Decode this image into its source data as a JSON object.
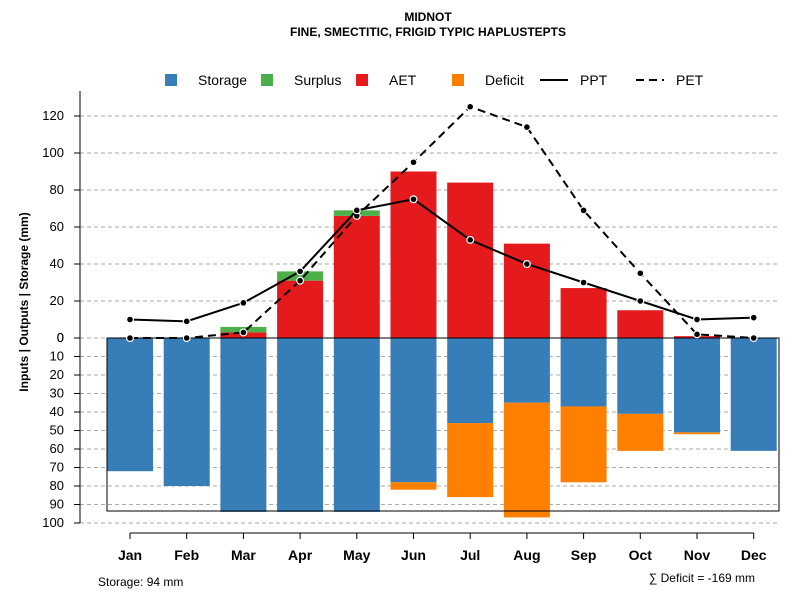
{
  "chart_data": {
    "type": "bar",
    "title": "MIDNOT",
    "subtitle": "FINE, SMECTITIC, FRIGID TYPIC HAPLUSTEPTS",
    "ylabel": "Inputs | Outputs | Storage    (mm)",
    "categories": [
      "Jan",
      "Feb",
      "Mar",
      "Apr",
      "May",
      "Jun",
      "Jul",
      "Aug",
      "Sep",
      "Oct",
      "Nov",
      "Dec"
    ],
    "ylim_top": [
      0,
      130
    ],
    "ylim_bottom": [
      0,
      100
    ],
    "upper_ticks": [
      "0",
      "20",
      "40",
      "60",
      "80",
      "100",
      "120"
    ],
    "lower_ticks": [
      "0",
      "10",
      "20",
      "30",
      "40",
      "50",
      "60",
      "70",
      "80",
      "90",
      "100"
    ],
    "series": [
      {
        "name": "Storage",
        "color": "#377EB8",
        "values": [
          72,
          80,
          94,
          94,
          94,
          78,
          46,
          35,
          37,
          41,
          51,
          61
        ]
      },
      {
        "name": "Surplus",
        "color": "#4DAF4A",
        "values": [
          0,
          0,
          3,
          5,
          3,
          0,
          0,
          0,
          0,
          0,
          0,
          0
        ]
      },
      {
        "name": "AET",
        "color": "#E41A1C",
        "values": [
          0,
          0,
          3,
          31,
          66,
          90,
          84,
          51,
          27,
          15,
          1,
          0
        ]
      },
      {
        "name": "Deficit",
        "color": "#FF7F00",
        "values": [
          0,
          0,
          0,
          0,
          0,
          4,
          40,
          62,
          41,
          20,
          1,
          0
        ]
      },
      {
        "name": "PPT",
        "color": "#000000",
        "style": "solid",
        "values": [
          10,
          9,
          19,
          36,
          69,
          75,
          53,
          40,
          30,
          20,
          10,
          11
        ]
      },
      {
        "name": "PET",
        "color": "#000000",
        "style": "dashed",
        "values": [
          0,
          0,
          3,
          31,
          66,
          95,
          125,
          114,
          69,
          35,
          2,
          0
        ]
      }
    ],
    "legend_position": "top",
    "grid": true
  },
  "footer": {
    "storage": "Storage: 94 mm",
    "deficit": "∑ Deficit = -169 mm"
  }
}
